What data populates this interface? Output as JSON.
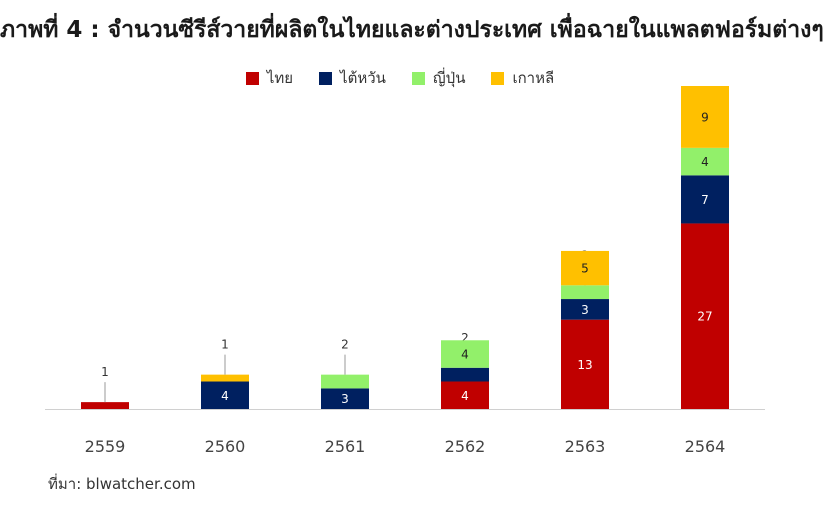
{
  "chart_data": {
    "type": "bar",
    "stacked": true,
    "title": "ภาพที่ 4 : จำนวนซีรีส์วายที่ผลิตในไทยและต่างประเทศ เพื่อฉายในแพลตฟอร์มต่างๆ",
    "categories": [
      "2559",
      "2560",
      "2561",
      "2562",
      "2563",
      "2564"
    ],
    "series": [
      {
        "name": "ไทย",
        "color": "#c00000",
        "values": [
          1,
          0,
          0,
          4,
          13,
          27
        ]
      },
      {
        "name": "ไต้หวัน",
        "color": "#002060",
        "values": [
          0,
          4,
          3,
          2,
          3,
          7
        ]
      },
      {
        "name": "ญี่ปุ่น",
        "color": "#92f06a",
        "values": [
          0,
          0,
          2,
          4,
          2,
          4
        ]
      },
      {
        "name": "เกาหลี",
        "color": "#ffc000",
        "values": [
          0,
          1,
          0,
          0,
          5,
          9
        ]
      }
    ],
    "ylim": [
      0,
      47
    ],
    "legend": "top",
    "grid": false
  },
  "source": "ที่มา: blwatcher.com"
}
